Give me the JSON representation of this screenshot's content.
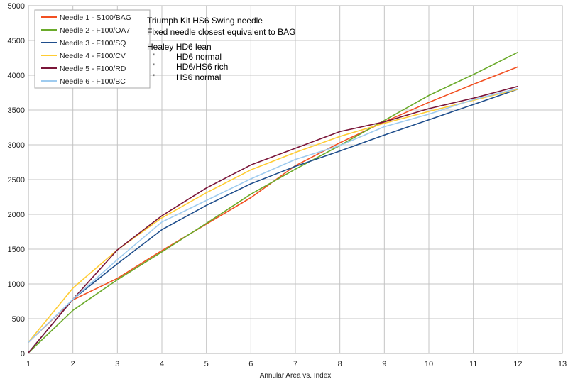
{
  "chart_data": {
    "type": "line",
    "xlabel": "Annular Area vs. Index",
    "ylabel": "",
    "xlim": [
      1,
      13
    ],
    "ylim": [
      0,
      5000
    ],
    "x_ticks": [
      "1",
      "2",
      "3",
      "4",
      "5",
      "6",
      "7",
      "8",
      "9",
      "10",
      "11",
      "12",
      "13"
    ],
    "y_ticks": [
      "0",
      "500",
      "1000",
      "1500",
      "2000",
      "2500",
      "3000",
      "3500",
      "4000",
      "4500",
      "5000"
    ],
    "grid": true,
    "legend_position": "top-left",
    "x": [
      1,
      2,
      3,
      4,
      5,
      6,
      7,
      8,
      9,
      10,
      11,
      12
    ],
    "series": [
      {
        "name": "Needle 1 - S100/BAG",
        "color": "#f25022",
        "values": [
          160,
          770,
          1080,
          1480,
          1860,
          2240,
          2700,
          3030,
          3330,
          3610,
          3870,
          4120
        ]
      },
      {
        "name": "Needle 2 - F100/OA7",
        "color": "#6aaa2a",
        "values": [
          10,
          620,
          1060,
          1460,
          1870,
          2290,
          2650,
          2990,
          3350,
          3710,
          4010,
          4330
        ]
      },
      {
        "name": "Needle 3 - F100/SQ",
        "color": "#1f4e8c",
        "values": [
          10,
          780,
          1290,
          1780,
          2130,
          2440,
          2690,
          2910,
          3140,
          3360,
          3580,
          3800
        ]
      },
      {
        "name": "Needle 4 - F100/CV",
        "color": "#ffcc33",
        "values": [
          160,
          940,
          1490,
          1950,
          2310,
          2640,
          2890,
          3120,
          3310,
          3480,
          3640,
          3800
        ]
      },
      {
        "name": "Needle 5 - F100/RD",
        "color": "#7a1538",
        "values": [
          10,
          780,
          1490,
          1980,
          2380,
          2710,
          2950,
          3190,
          3330,
          3520,
          3670,
          3840
        ]
      },
      {
        "name": "Needle 6 - F100/BC",
        "color": "#9ecbef",
        "values": [
          160,
          780,
          1350,
          1890,
          2200,
          2510,
          2790,
          2990,
          3260,
          3440,
          3650,
          3810
        ]
      }
    ],
    "annotations": [
      "Triumph Kit HS6 Swing needle",
      "Fixed needle closest equivalent to BAG",
      "Healey HD6 lean",
      "\"",
      "HD6 normal",
      "\"",
      "HD6/HS6 rich",
      "\"",
      "HS6 normal"
    ]
  }
}
